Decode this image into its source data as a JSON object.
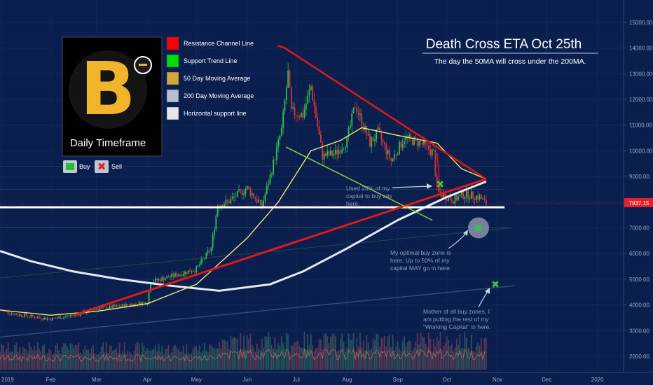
{
  "title": "Death Cross ETA Oct 25th",
  "subtitle": "The day the 50MA will cross under the 200MA.",
  "logo_panel": {
    "symbol": "B",
    "caption": "Daily Timeframe"
  },
  "signals": {
    "buy_label": "Buy",
    "sell_label": "Sell"
  },
  "legend": [
    {
      "label": "Resistance Channel Line",
      "color": "#ff0000"
    },
    {
      "label": "Support Trend Line",
      "color": "#00dd00"
    },
    {
      "label": "50 Day Moving Average",
      "color": "#d4a63a"
    },
    {
      "label": "200 Day Moving Average",
      "color": "#b8bfd0"
    },
    {
      "label": "Horizontal support line",
      "color": "#e6e6e6"
    }
  ],
  "annotations": {
    "note1": [
      "Used 25% of my",
      "capital to buy alts",
      "here."
    ],
    "note2": [
      "My optimal buy zone is",
      "here. Up to 50% of my",
      "capital MAY go in here."
    ],
    "note3": [
      "Mother of all buy zones, I",
      "am putting the rest of my",
      "\"Working Capital\" in here."
    ]
  },
  "price_tag": "7937.15",
  "chart_data": {
    "type": "candlestick",
    "x_axis": {
      "tick_labels": [
        "2019",
        "Feb",
        "Mar",
        "Apr",
        "May",
        "Jun",
        "Jul",
        "Aug",
        "Sep",
        "Oct",
        "Nov",
        "Dec",
        "2020"
      ],
      "range": [
        "2019-01-01",
        "2020-01-05"
      ]
    },
    "y_axis": {
      "tick_labels": [
        "2000.00",
        "3000.00",
        "4000.00",
        "5000.00",
        "6000.00",
        "7000.00",
        "8000.00",
        "9000.00",
        "10000.00",
        "11000.00",
        "12000.00",
        "13000.00",
        "14000.00",
        "15000.00"
      ],
      "range": [
        1650,
        15850
      ],
      "position": "right"
    },
    "last_price": 7937.15,
    "price_path": [
      [
        "2019-01-01",
        3800
      ],
      [
        "2019-01-10",
        3650
      ],
      [
        "2019-01-20",
        3550
      ],
      [
        "2019-02-01",
        3450
      ],
      [
        "2019-02-15",
        3600
      ],
      [
        "2019-03-01",
        3850
      ],
      [
        "2019-03-15",
        3950
      ],
      [
        "2019-04-01",
        4100
      ],
      [
        "2019-04-03",
        4900
      ],
      [
        "2019-04-15",
        5100
      ],
      [
        "2019-05-01",
        5400
      ],
      [
        "2019-05-10",
        6200
      ],
      [
        "2019-05-14",
        7900
      ],
      [
        "2019-05-20",
        8000
      ],
      [
        "2019-06-01",
        8550
      ],
      [
        "2019-06-10",
        7850
      ],
      [
        "2019-06-15",
        9000
      ],
      [
        "2019-06-22",
        10800
      ],
      [
        "2019-06-26",
        13000
      ],
      [
        "2019-06-28",
        11500
      ],
      [
        "2019-07-05",
        11400
      ],
      [
        "2019-07-10",
        12500
      ],
      [
        "2019-07-17",
        9800
      ],
      [
        "2019-07-25",
        9900
      ],
      [
        "2019-08-01",
        10400
      ],
      [
        "2019-08-06",
        11800
      ],
      [
        "2019-08-15",
        10300
      ],
      [
        "2019-08-20",
        10700
      ],
      [
        "2019-08-28",
        9600
      ],
      [
        "2019-09-05",
        10500
      ],
      [
        "2019-09-15",
        10300
      ],
      [
        "2019-09-23",
        9900
      ],
      [
        "2019-09-25",
        8400
      ],
      [
        "2019-10-05",
        8100
      ],
      [
        "2019-10-12",
        8300
      ],
      [
        "2019-10-21",
        8200
      ],
      [
        "2019-10-25",
        7937
      ]
    ],
    "ma50": [
      [
        "2019-01-01",
        3800
      ],
      [
        "2019-02-01",
        3600
      ],
      [
        "2019-03-01",
        3750
      ],
      [
        "2019-04-01",
        4050
      ],
      [
        "2019-05-01",
        4800
      ],
      [
        "2019-06-01",
        6600
      ],
      [
        "2019-06-20",
        8000
      ],
      [
        "2019-07-10",
        10000
      ],
      [
        "2019-07-28",
        10400
      ],
      [
        "2019-08-10",
        10900
      ],
      [
        "2019-09-01",
        10600
      ],
      [
        "2019-09-25",
        10300
      ],
      [
        "2019-10-10",
        9300
      ],
      [
        "2019-10-25",
        8900
      ]
    ],
    "ma200": [
      [
        "2019-01-01",
        6100
      ],
      [
        "2019-01-20",
        5700
      ],
      [
        "2019-02-15",
        5300
      ],
      [
        "2019-03-15",
        5000
      ],
      [
        "2019-04-15",
        4750
      ],
      [
        "2019-05-15",
        4550
      ],
      [
        "2019-06-15",
        4800
      ],
      [
        "2019-07-05",
        5300
      ],
      [
        "2019-08-01",
        6200
      ],
      [
        "2019-09-01",
        7300
      ],
      [
        "2019-10-01",
        8200
      ],
      [
        "2019-10-25",
        8800
      ]
    ],
    "resistance_line": [
      [
        "2019-06-24",
        14000
      ],
      [
        "2019-10-25",
        8900
      ]
    ],
    "support_trend_line": [
      [
        "2019-02-15",
        3600
      ],
      [
        "2019-10-25",
        8900
      ]
    ],
    "horizontal_support": 7800,
    "sell_marker": [
      "2019-09-27",
      8700
    ],
    "buy_markers": [
      [
        "2019-10-25",
        7000
      ],
      [
        "2019-10-26",
        4800
      ]
    ]
  }
}
